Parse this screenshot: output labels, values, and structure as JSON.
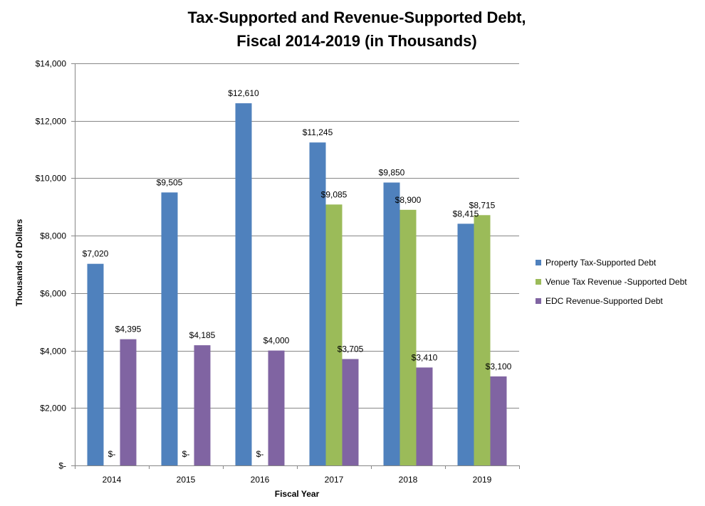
{
  "chart_data": {
    "type": "bar",
    "title": "Tax-Supported and Revenue-Supported Debt,",
    "subtitle": "Fiscal 2014-2019 (in Thousands)",
    "xlabel": "Fiscal Year",
    "ylabel": "Thousands of Dollars",
    "ylim": [
      0,
      14000
    ],
    "y_ticks": [
      {
        "value": 0,
        "label": "$-"
      },
      {
        "value": 2000,
        "label": "$2,000"
      },
      {
        "value": 4000,
        "label": "$4,000"
      },
      {
        "value": 6000,
        "label": "$6,000"
      },
      {
        "value": 8000,
        "label": "$8,000"
      },
      {
        "value": 10000,
        "label": "$10,000"
      },
      {
        "value": 12000,
        "label": "$12,000"
      },
      {
        "value": 14000,
        "label": "$14,000"
      }
    ],
    "grid": true,
    "legend_position": "right",
    "categories": [
      "2014",
      "2015",
      "2016",
      "2017",
      "2018",
      "2019"
    ],
    "series": [
      {
        "name": "Property Tax-Supported Debt",
        "color": "#4F81BD",
        "values": [
          7020,
          9505,
          12610,
          11245,
          9850,
          8415
        ],
        "labels": [
          "$7,020",
          "$9,505",
          "$12,610",
          "$11,245",
          "$9,850",
          "$8,415"
        ]
      },
      {
        "name": "Venue Tax Revenue -Supported Debt",
        "color": "#9BBB59",
        "values": [
          0,
          0,
          0,
          9085,
          8900,
          8715
        ],
        "labels": [
          "$-",
          "$-",
          "$-",
          "$9,085",
          "$8,900",
          "$8,715"
        ]
      },
      {
        "name": "EDC Revenue-Supported Debt",
        "color": "#8064A2",
        "values": [
          4395,
          4185,
          4000,
          3705,
          3410,
          3100
        ],
        "labels": [
          "$4,395",
          "$4,185",
          "$4,000",
          "$3,705",
          "$3,410",
          "$3,100"
        ]
      }
    ]
  }
}
